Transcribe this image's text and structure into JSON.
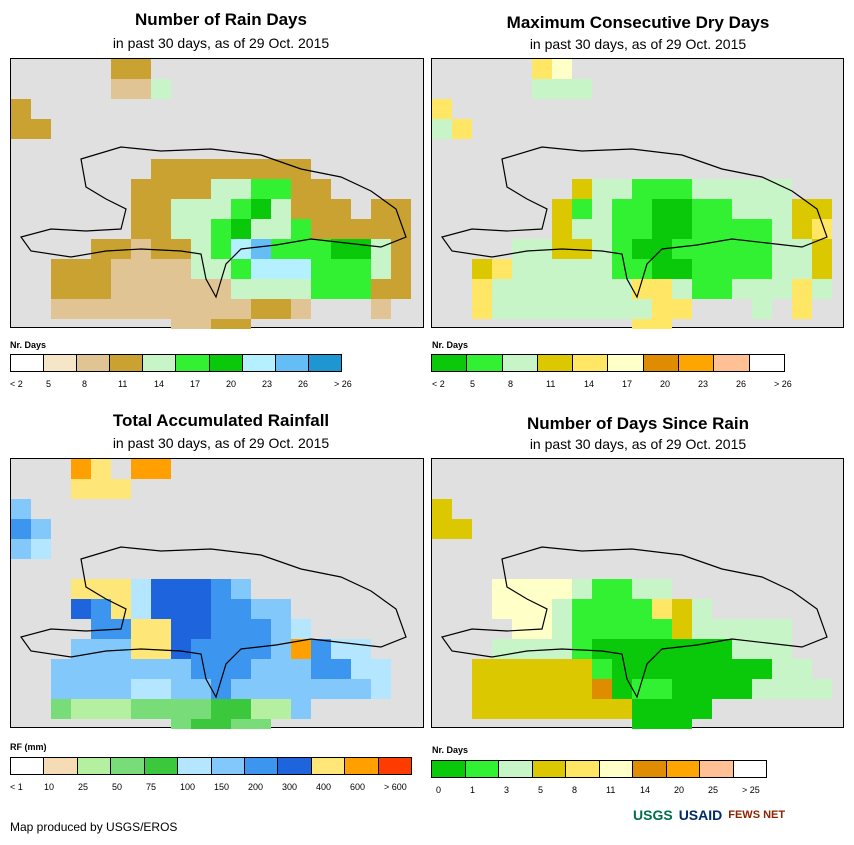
{
  "subtitle": "in past 30 days, as of 29 Oct. 2015",
  "panels": {
    "rain_days": {
      "title": "Number of Rain Days",
      "legend_title": "Nr. Days",
      "colors": [
        "#ffffff",
        "#f5e6c8",
        "#e0c494",
        "#c9a232",
        "#c8f5c8",
        "#32f032",
        "#0ac80a",
        "#b4f0ff",
        "#64bef5",
        "#1e96d2"
      ],
      "labels": [
        "< 2",
        "5",
        "8",
        "11",
        "14",
        "17",
        "20",
        "23",
        "26",
        "> 26"
      ]
    },
    "dry_days": {
      "title": "Maximum Consecutive Dry Days",
      "legend_title": "Nr. Days",
      "colors": [
        "#0ac80a",
        "#32f032",
        "#c8f5c8",
        "#dcc800",
        "#ffe664",
        "#ffffc8",
        "#e08c00",
        "#ffa500",
        "#ffc096",
        "#ffffff"
      ],
      "labels": [
        "< 2",
        "5",
        "8",
        "11",
        "14",
        "17",
        "20",
        "23",
        "26",
        "> 26"
      ]
    },
    "rainfall": {
      "title": "Total Accumulated Rainfall",
      "legend_title": "RF (mm)",
      "colors": [
        "#ffffff",
        "#f5dcb4",
        "#b4f0a0",
        "#78dc78",
        "#3cc83c",
        "#b4e6ff",
        "#82c8fa",
        "#3c96f0",
        "#1e64dc",
        "#ffe678",
        "#ffa000",
        "#ff3c00"
      ],
      "labels": [
        "< 1",
        "10",
        "25",
        "50",
        "75",
        "100",
        "150",
        "200",
        "300",
        "400",
        "600",
        "> 600"
      ]
    },
    "since_rain": {
      "title": "Number of Days Since Rain",
      "legend_title": "Nr. Days",
      "colors": [
        "#0ac80a",
        "#32f032",
        "#c8f5c8",
        "#dcc800",
        "#ffe664",
        "#ffffc8",
        "#e08c00",
        "#ffa500",
        "#ffc096",
        "#ffffff"
      ],
      "labels": [
        "0",
        "1",
        "3",
        "5",
        "8",
        "11",
        "14",
        "20",
        "25",
        "> 25"
      ]
    }
  },
  "footer": "Map produced by USGS/EROS",
  "logos": {
    "usgs": "USGS",
    "usaid": "USAID",
    "fews": "FEWS NET"
  }
}
